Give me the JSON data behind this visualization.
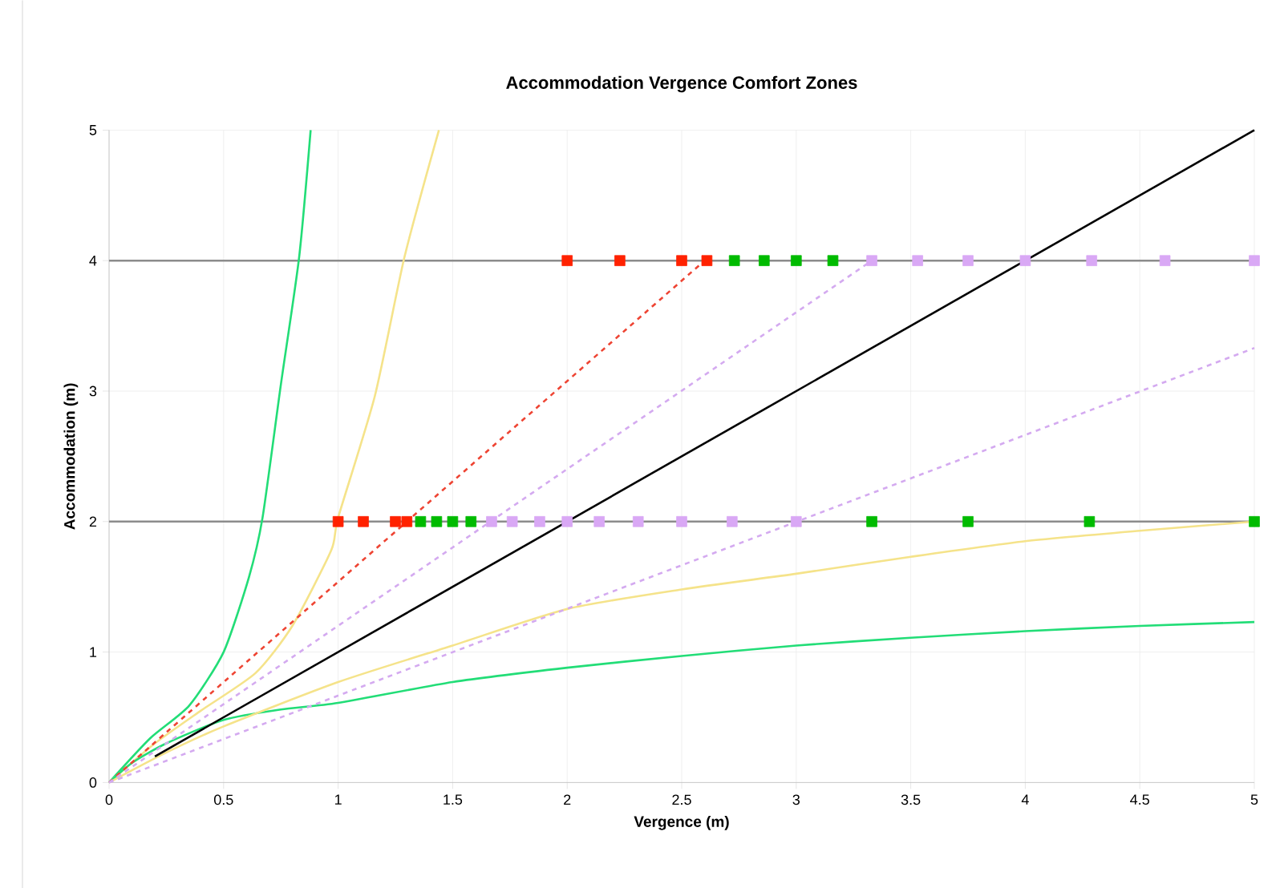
{
  "chart_data": {
    "type": "line",
    "title": "Accommodation Vergence Comfort Zones",
    "xlabel": "Vergence (m)",
    "ylabel": "Accommodation (m)",
    "xlim": [
      0,
      5
    ],
    "ylim": [
      0,
      5
    ],
    "xticks": [
      0,
      0.5,
      1,
      1.5,
      2,
      2.5,
      3,
      3.5,
      4,
      4.5,
      5
    ],
    "yticks": [
      0,
      1,
      2,
      3,
      4,
      5
    ],
    "grid": true,
    "series": [
      {
        "color": "#8c8c8c",
        "x": [
          0,
          5
        ],
        "values": [
          2,
          2
        ]
      },
      {
        "color": "#8c8c8c",
        "x": [
          0,
          5
        ],
        "values": [
          4,
          4
        ]
      },
      {
        "color": "#22dd77",
        "x": [
          0,
          0.18,
          0.35,
          0.5,
          0.61,
          0.67,
          0.75,
          0.83,
          0.88
        ],
        "values": [
          0,
          0.34,
          0.59,
          1.0,
          1.57,
          2.03,
          3.05,
          4.03,
          5.0
        ]
      },
      {
        "color": "#f5e38a",
        "x": [
          0,
          0.2,
          0.4,
          0.64,
          0.8,
          0.97,
          1.0,
          1.16,
          1.29,
          1.44
        ],
        "values": [
          0,
          0.3,
          0.55,
          0.84,
          1.2,
          1.78,
          2.03,
          2.96,
          4.03,
          5.0
        ]
      },
      {
        "color": "#22dd77",
        "x": [
          0,
          0.1,
          0.25,
          0.5,
          0.75,
          1,
          1.5,
          2,
          2.5,
          3,
          3.5,
          4,
          4.5,
          5
        ],
        "values": [
          0,
          0.15,
          0.3,
          0.48,
          0.56,
          0.61,
          0.77,
          0.88,
          0.97,
          1.05,
          1.11,
          1.16,
          1.2,
          1.23
        ]
      },
      {
        "color": "#f5e38a",
        "x": [
          0,
          0.25,
          0.5,
          1,
          1.5,
          2,
          2.5,
          3,
          3.5,
          4,
          4.5,
          5
        ],
        "values": [
          0,
          0.23,
          0.43,
          0.77,
          1.05,
          1.33,
          1.48,
          1.6,
          1.73,
          1.85,
          1.93,
          2.0
        ]
      },
      {
        "color": "#ee4433",
        "line_style": "dashed",
        "x": [
          0,
          2.6
        ],
        "values": [
          0,
          4
        ]
      },
      {
        "color": "#d4aaf0",
        "line_style": "dashed",
        "x": [
          0,
          3.33
        ],
        "values": [
          0,
          4
        ]
      },
      {
        "color": "#d4aaf0",
        "line_style": "dashed",
        "x": [
          0,
          5
        ],
        "values": [
          0,
          3.33
        ]
      },
      {
        "color": "#000000",
        "x": [
          0.2,
          5
        ],
        "values": [
          0.2,
          5
        ]
      },
      {
        "type": "scatter",
        "marker": "square",
        "color": "#ff2200",
        "x": [
          2.0,
          2.23,
          2.5,
          2.61,
          1.0,
          1.11,
          1.25,
          1.3
        ],
        "values": [
          4,
          4,
          4,
          4,
          2,
          2,
          2,
          2
        ]
      },
      {
        "type": "scatter",
        "marker": "square",
        "color": "#00bb00",
        "x": [
          2.73,
          2.86,
          3.0,
          3.16,
          1.36,
          1.43,
          1.5,
          1.58,
          3.33,
          3.75,
          4.28,
          5.0
        ],
        "values": [
          4,
          4,
          4,
          4,
          2,
          2,
          2,
          2,
          2,
          2,
          2,
          2
        ]
      },
      {
        "type": "scatter",
        "marker": "square",
        "color": "#d9a8f5",
        "x": [
          3.33,
          3.53,
          3.75,
          4.0,
          4.29,
          4.61,
          5.0,
          1.67,
          1.76,
          1.88,
          2.0,
          2.14,
          2.31,
          2.5,
          2.72,
          3.0
        ],
        "values": [
          4,
          4,
          4,
          4,
          4,
          4,
          4,
          2,
          2,
          2,
          2,
          2,
          2,
          2,
          2,
          2
        ]
      }
    ]
  }
}
